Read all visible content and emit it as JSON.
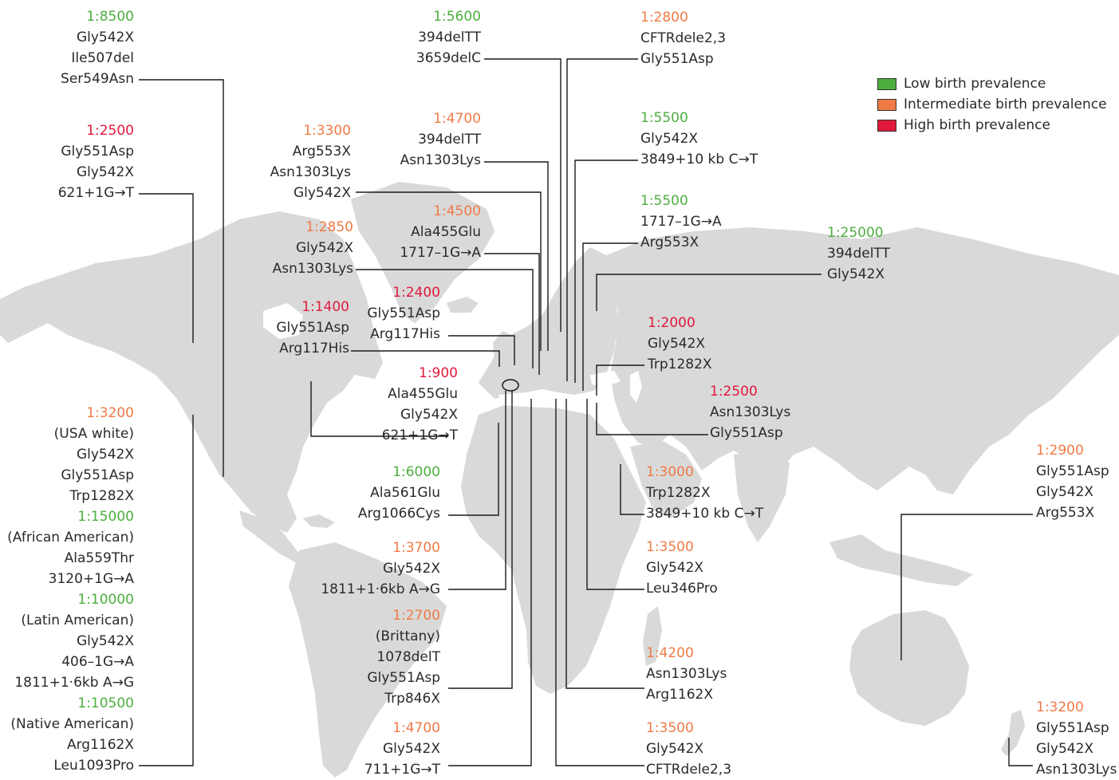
{
  "colors": {
    "low": "#4caf3e",
    "intermediate": "#f07a45",
    "high": "#e0193c",
    "land": "#d9d9d9",
    "text": "#2a2a2a"
  },
  "legend": [
    {
      "label": "Low birth prevalence",
      "level": "low"
    },
    {
      "label": "Intermediate birth prevalence",
      "level": "intermediate"
    },
    {
      "label": "High birth prevalence",
      "level": "high"
    }
  ],
  "regions": {
    "canada_north": {
      "groups": [
        {
          "ratio": "1:8500",
          "level": "low",
          "mutations": [
            "Gly542X",
            "Ile507del",
            "Ser549Asn"
          ]
        }
      ]
    },
    "canada_west": {
      "groups": [
        {
          "ratio": "1:2500",
          "level": "high",
          "mutations": [
            "Gly551Asp",
            "Gly542X",
            "621+1G→T"
          ]
        }
      ]
    },
    "usa": {
      "groups": [
        {
          "ratio": "1:3200",
          "level": "intermediate",
          "mutations": [
            "(USA white)",
            "Gly542X",
            "Gly551Asp",
            "Trp1282X"
          ]
        },
        {
          "ratio": "1:15000",
          "level": "low",
          "mutations": [
            "(African American)",
            "Ala559Thr",
            "3120+1G→A"
          ]
        },
        {
          "ratio": "1:10000",
          "level": "low",
          "mutations": [
            "(Latin American)",
            "Gly542X",
            "406–1G→A",
            "1811+1·6kb A→G"
          ]
        },
        {
          "ratio": "1:10500",
          "level": "low",
          "mutations": [
            "(Native American)",
            "Arg1162X",
            "Leu1093Pro"
          ]
        }
      ]
    },
    "norway": {
      "groups": [
        {
          "ratio": "1:3300",
          "level": "intermediate",
          "mutations": [
            "Arg553X",
            "Asn1303Lys",
            "Gly542X"
          ]
        }
      ]
    },
    "uk": {
      "groups": [
        {
          "ratio": "1:2850",
          "level": "intermediate",
          "mutations": [
            "Gly542X",
            "Asn1303Lys"
          ]
        }
      ]
    },
    "ireland": {
      "groups": [
        {
          "ratio": "1:1400",
          "level": "high",
          "mutations": [
            "Gly551Asp",
            "Arg117His"
          ]
        }
      ]
    },
    "sweden": {
      "groups": [
        {
          "ratio": "1:5600",
          "level": "low",
          "mutations": [
            "394delTT",
            "3659delC"
          ]
        }
      ]
    },
    "denmark": {
      "groups": [
        {
          "ratio": "1:4700",
          "level": "intermediate",
          "mutations": [
            "394delTT",
            "Asn1303Lys"
          ]
        }
      ]
    },
    "germany": {
      "groups": [
        {
          "ratio": "1:4500",
          "level": "intermediate",
          "mutations": [
            "Ala455Glu",
            "1717–1G→A"
          ]
        }
      ]
    },
    "belgium": {
      "groups": [
        {
          "ratio": "1:2400",
          "level": "high",
          "mutations": [
            "Gly551Asp",
            "Arg117His"
          ]
        }
      ]
    },
    "netherlands": {
      "groups": [
        {
          "ratio": "1:900",
          "level": "high",
          "mutations": [
            "Ala455Glu",
            "Gly542X",
            "621+1G→T"
          ]
        }
      ]
    },
    "portugal": {
      "groups": [
        {
          "ratio": "1:6000",
          "level": "low",
          "mutations": [
            "Ala561Glu",
            "Arg1066Cys"
          ]
        }
      ]
    },
    "spain": {
      "groups": [
        {
          "ratio": "1:3700",
          "level": "intermediate",
          "mutations": [
            "Gly542X",
            "1811+1·6kb A→G"
          ]
        }
      ]
    },
    "france": {
      "groups": [
        {
          "ratio": "1:2700",
          "level": "intermediate",
          "mutations": [
            "(Brittany)",
            "1078delT",
            "Gly551Asp",
            "Trp846X"
          ]
        }
      ]
    },
    "italy": {
      "groups": [
        {
          "ratio": "1:4700",
          "level": "intermediate",
          "mutations": [
            "Gly542X",
            "711+1G→T"
          ]
        }
      ]
    },
    "czech": {
      "groups": [
        {
          "ratio": "1:2800",
          "level": "intermediate",
          "mutations": [
            "CFTRdele2,3",
            "Gly551Asp"
          ]
        }
      ]
    },
    "poland": {
      "groups": [
        {
          "ratio": "1:5500",
          "level": "low",
          "mutations": [
            "Gly542X",
            "3849+10 kb C→T"
          ]
        }
      ]
    },
    "finland": {
      "groups": [
        {
          "ratio": "1:5500",
          "level": "low",
          "mutations": [
            "1717–1G→A",
            "Arg553X"
          ]
        }
      ]
    },
    "russia": {
      "groups": [
        {
          "ratio": "1:25000",
          "level": "low",
          "mutations": [
            "394delTT",
            "Gly542X"
          ]
        }
      ]
    },
    "greece": {
      "groups": [
        {
          "ratio": "1:2000",
          "level": "high",
          "mutations": [
            "Gly542X",
            "Trp1282X"
          ]
        }
      ]
    },
    "turkey": {
      "groups": [
        {
          "ratio": "1:2500",
          "level": "high",
          "mutations": [
            "Asn1303Lys",
            "Gly551Asp"
          ]
        }
      ]
    },
    "israel": {
      "groups": [
        {
          "ratio": "1:3000",
          "level": "intermediate",
          "mutations": [
            "Trp1282X",
            "3849+10 kb C→T"
          ]
        }
      ]
    },
    "bulgaria": {
      "groups": [
        {
          "ratio": "1:3500",
          "level": "intermediate",
          "mutations": [
            "Gly542X",
            "Leu346Pro"
          ]
        }
      ]
    },
    "slovenia": {
      "groups": [
        {
          "ratio": "1:4200",
          "level": "intermediate",
          "mutations": [
            "Asn1303Lys",
            "Arg1162X"
          ]
        }
      ]
    },
    "austria": {
      "groups": [
        {
          "ratio": "1:3500",
          "level": "intermediate",
          "mutations": [
            "Gly542X",
            "CFTRdele2,3"
          ]
        }
      ]
    },
    "australia": {
      "groups": [
        {
          "ratio": "1:2900",
          "level": "intermediate",
          "mutations": [
            "Gly551Asp",
            "Gly542X",
            "Arg553X"
          ]
        }
      ]
    },
    "new_zealand": {
      "groups": [
        {
          "ratio": "1:3200",
          "level": "intermediate",
          "mutations": [
            "Gly551Asp",
            "Gly542X",
            "Asn1303Lys"
          ]
        }
      ]
    }
  }
}
